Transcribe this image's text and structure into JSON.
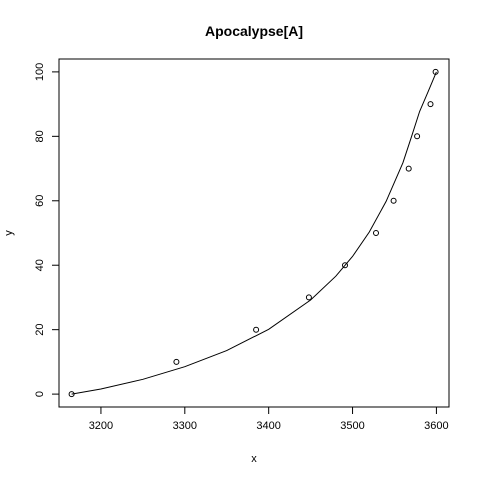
{
  "chart_data": {
    "type": "scatter",
    "title": "Apocalypse[A]",
    "xlabel": "x",
    "ylabel": "y",
    "xlim": [
      3150,
      3615
    ],
    "ylim": [
      -4,
      104
    ],
    "x_ticks": [
      3200,
      3300,
      3400,
      3500,
      3600
    ],
    "y_ticks": [
      0,
      20,
      40,
      60,
      80,
      100
    ],
    "grid": false,
    "legend": "none",
    "series": [
      {
        "type": "scatter",
        "marker": "open-circle",
        "x": [
          3165,
          3290,
          3385,
          3448,
          3491,
          3528,
          3549,
          3567,
          3577,
          3593,
          3599
        ],
        "y": [
          0,
          10,
          20,
          30,
          40,
          50,
          60,
          70,
          80,
          90,
          100
        ]
      },
      {
        "type": "line",
        "x": [
          3165,
          3200,
          3250,
          3300,
          3350,
          3400,
          3450,
          3480,
          3500,
          3520,
          3540,
          3560,
          3570,
          3580,
          3590,
          3595,
          3600
        ],
        "y": [
          0,
          1.6,
          4.6,
          8.5,
          13.5,
          20.1,
          29.2,
          36.6,
          42.7,
          50.3,
          59.8,
          71.8,
          79.7,
          87.7,
          93.8,
          96.9,
          100
        ]
      }
    ],
    "colors": {
      "axis": "#000000",
      "points": "#000000",
      "curve": "#000000",
      "background": "#ffffff"
    }
  }
}
